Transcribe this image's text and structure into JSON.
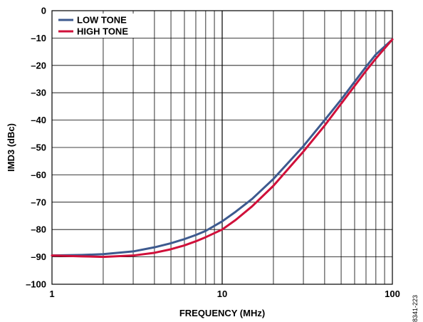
{
  "figure_id": "8341-223",
  "chart_data": {
    "type": "line",
    "title": "",
    "xlabel": "FREQUENCY (MHz)",
    "ylabel": "IMD3 (dBc)",
    "xscale": "log",
    "xlim": [
      1,
      100
    ],
    "ylim": [
      -100,
      0
    ],
    "x_ticks": [
      1,
      10,
      100
    ],
    "x_tick_labels": [
      "1",
      "10",
      "100"
    ],
    "y_ticks": [
      0,
      -10,
      -20,
      -30,
      -40,
      -50,
      -60,
      -70,
      -80,
      -90,
      -100
    ],
    "y_tick_labels": [
      "0",
      "–10",
      "–20",
      "–30",
      "–40",
      "–50",
      "–60",
      "–70",
      "–80",
      "–90",
      "–100"
    ],
    "grid": true,
    "legend_position": "top-left",
    "series": [
      {
        "name": "LOW TONE",
        "color": "#3d5a8f",
        "x": [
          1,
          1.5,
          2,
          3,
          4,
          5,
          6,
          7,
          8,
          10,
          12,
          15,
          20,
          30,
          40,
          50,
          60,
          70,
          80,
          100
        ],
        "y": [
          -89.5,
          -89.3,
          -89,
          -88,
          -86.5,
          -85,
          -83.5,
          -82,
          -80.5,
          -77,
          -73.5,
          -68.8,
          -61.5,
          -49.5,
          -40,
          -32.5,
          -26,
          -20.5,
          -16,
          -10.5
        ]
      },
      {
        "name": "HIGH TONE",
        "color": "#d0103a",
        "x": [
          1,
          1.5,
          2,
          3,
          4,
          5,
          6,
          7,
          8,
          10,
          12,
          15,
          20,
          30,
          40,
          50,
          60,
          70,
          80,
          100
        ],
        "y": [
          -89.5,
          -89.8,
          -90,
          -89.5,
          -88.5,
          -87.2,
          -85.8,
          -84.3,
          -82.8,
          -80,
          -76.5,
          -71.5,
          -64,
          -51.5,
          -42,
          -34,
          -27.5,
          -22,
          -17.5,
          -10.5
        ]
      }
    ]
  }
}
